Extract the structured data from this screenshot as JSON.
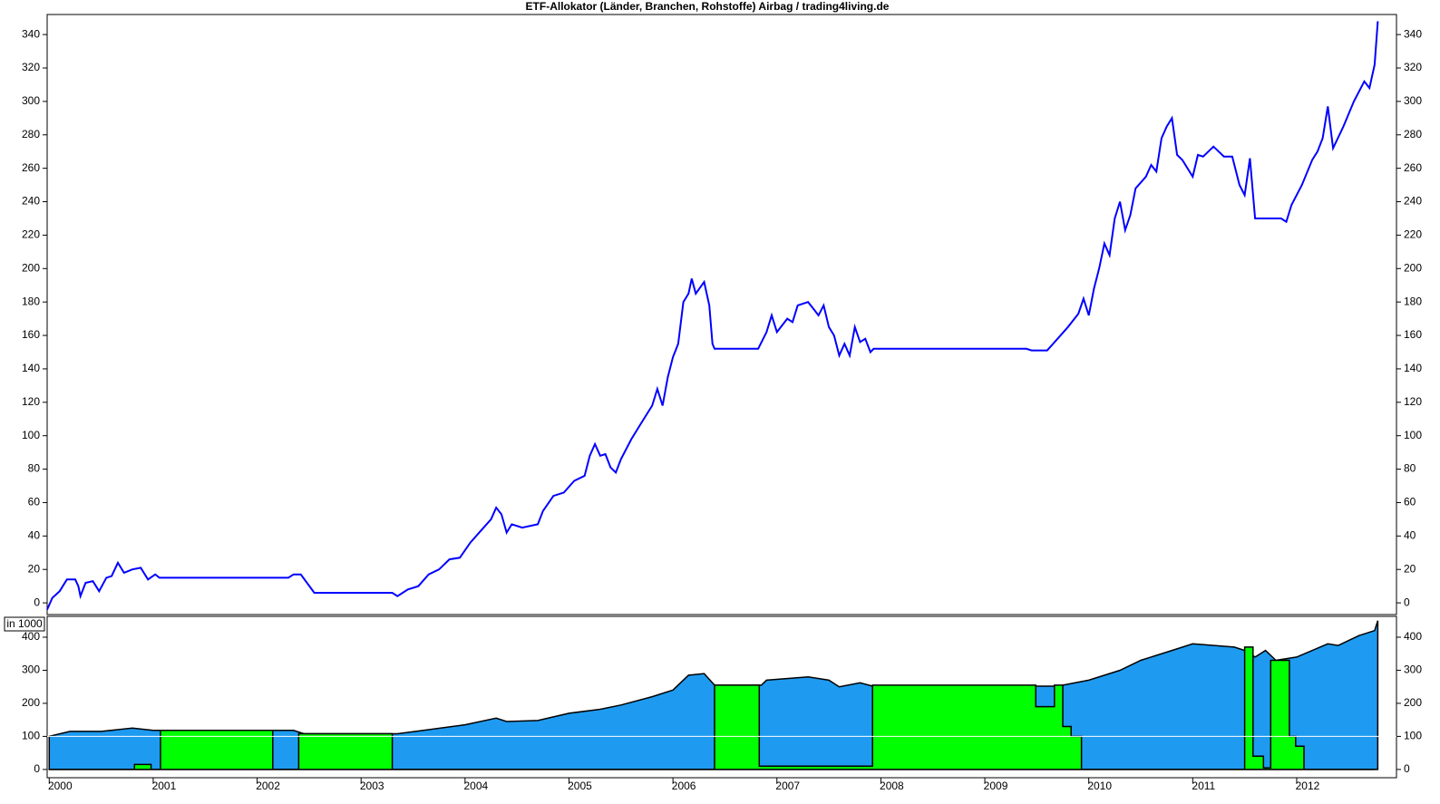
{
  "chart_data": [
    {
      "type": "line",
      "title": "ETF-Allokator (Länder, Branchen, Rohstoffe) Airbag / trading4living.de",
      "x": [
        1999.98,
        2000.03,
        2000.1,
        2000.17,
        2000.25,
        2000.28,
        2000.3,
        2000.35,
        2000.42,
        2000.48,
        2000.55,
        2000.6,
        2000.66,
        2000.72,
        2000.8,
        2000.88,
        2000.95,
        2001.02,
        2001.06,
        2002.3,
        2002.35,
        2002.42,
        2002.55,
        2003.3,
        2003.35,
        2003.45,
        2003.55,
        2003.65,
        2003.75,
        2003.85,
        2003.95,
        2004.05,
        2004.15,
        2004.25,
        2004.3,
        2004.35,
        2004.4,
        2004.45,
        2004.55,
        2004.7,
        2004.75,
        2004.85,
        2004.95,
        2005.05,
        2005.15,
        2005.2,
        2005.25,
        2005.3,
        2005.35,
        2005.4,
        2005.45,
        2005.5,
        2005.6,
        2005.7,
        2005.8,
        2005.85,
        2005.9,
        2005.95,
        2006.0,
        2006.05,
        2006.1,
        2006.15,
        2006.18,
        2006.22,
        2006.3,
        2006.35,
        2006.38,
        2006.4,
        2006.82,
        2006.9,
        2006.95,
        2007.0,
        2007.1,
        2007.15,
        2007.2,
        2007.3,
        2007.35,
        2007.4,
        2007.45,
        2007.5,
        2007.55,
        2007.6,
        2007.65,
        2007.7,
        2007.75,
        2007.8,
        2007.85,
        2007.9,
        2007.93,
        2009.4,
        2009.45,
        2009.6,
        2009.7,
        2009.8,
        2009.9,
        2009.95,
        2010.0,
        2010.05,
        2010.1,
        2010.15,
        2010.2,
        2010.25,
        2010.3,
        2010.35,
        2010.4,
        2010.45,
        2010.55,
        2010.6,
        2010.65,
        2010.7,
        2010.75,
        2010.8,
        2010.85,
        2010.9,
        2011.0,
        2011.05,
        2011.1,
        2011.2,
        2011.3,
        2011.38,
        2011.45,
        2011.5,
        2011.55,
        2011.6,
        2011.85,
        2011.9,
        2011.95,
        2012.05,
        2012.15,
        2012.2,
        2012.25,
        2012.3,
        2012.35,
        2012.45,
        2012.55,
        2012.65,
        2012.7,
        2012.75,
        2012.78
      ],
      "series": [
        {
          "color": "#0000ff",
          "values": [
            -4,
            3,
            7,
            14,
            14,
            10,
            4,
            12,
            13,
            7,
            15,
            16,
            24,
            18,
            20,
            21,
            14,
            17,
            15,
            15,
            17,
            17,
            6,
            6,
            4,
            8,
            10,
            17,
            20,
            26,
            27,
            36,
            43,
            50,
            57,
            53,
            42,
            47,
            45,
            47,
            55,
            64,
            66,
            73,
            76,
            88,
            95,
            88,
            89,
            81,
            78,
            86,
            98,
            108,
            118,
            128,
            118,
            135,
            147,
            155,
            180,
            185,
            194,
            185,
            192,
            178,
            155,
            152,
            152,
            162,
            172,
            162,
            170,
            168,
            178,
            180,
            176,
            172,
            178,
            165,
            160,
            148,
            155,
            148,
            165,
            156,
            158,
            150,
            152,
            152,
            151,
            151,
            158,
            165,
            173,
            182,
            172,
            188,
            200,
            215,
            208,
            230,
            240,
            223,
            232,
            248,
            255,
            262,
            258,
            278,
            285,
            290,
            268,
            265,
            255,
            268,
            267,
            273,
            267,
            267,
            250,
            244,
            266,
            230,
            230,
            228,
            238,
            250,
            265,
            270,
            278,
            297,
            272,
            285,
            300,
            312,
            308,
            322,
            348
          ]
        }
      ],
      "xlim": [
        1999.98,
        2012.96
      ],
      "ylim": [
        -7,
        352
      ],
      "yticks": [
        0,
        20,
        40,
        60,
        80,
        100,
        120,
        140,
        160,
        180,
        200,
        220,
        240,
        260,
        280,
        300,
        320,
        340
      ]
    },
    {
      "type": "area",
      "annotation": "in 1000",
      "series": [
        {
          "color": "#1e9bf0",
          "x": [
            2000.0,
            2000.2,
            2000.5,
            2000.8,
            2001.0,
            2002.35,
            2002.45,
            2003.35,
            2003.6,
            2004.0,
            2004.3,
            2004.4,
            2004.7,
            2005.0,
            2005.3,
            2005.5,
            2005.8,
            2006.0,
            2006.15,
            2006.3,
            2006.4,
            2006.85,
            2006.9,
            2007.3,
            2007.5,
            2007.6,
            2007.8,
            2007.92,
            2009.7,
            2010.0,
            2010.3,
            2010.5,
            2010.8,
            2011.0,
            2011.4,
            2011.5,
            2011.6,
            2011.7,
            2011.8,
            2012.0,
            2012.3,
            2012.4,
            2012.6,
            2012.75,
            2012.78
          ],
          "values": [
            100,
            115,
            115,
            125,
            118,
            118,
            108,
            108,
            118,
            135,
            155,
            145,
            148,
            170,
            182,
            195,
            220,
            240,
            285,
            290,
            255,
            255,
            270,
            280,
            270,
            250,
            262,
            252,
            252,
            270,
            300,
            330,
            360,
            380,
            370,
            360,
            340,
            360,
            330,
            340,
            380,
            375,
            405,
            420,
            450
          ]
        },
        {
          "color": "#00ff00",
          "x": [
            2000.0,
            2000.82,
            2000.82,
            2000.98,
            2000.98,
            2001.07,
            2001.07,
            2002.15,
            2002.15,
            2002.4,
            2002.4,
            2003.3,
            2003.3,
            2006.4,
            2006.4,
            2006.83,
            2006.83,
            2007.92,
            2007.92,
            2009.49,
            2009.49,
            2009.67,
            2009.67,
            2009.75,
            2009.75,
            2009.83,
            2009.83,
            2009.93,
            2009.93,
            2011.5,
            2011.5,
            2011.58,
            2011.58,
            2011.68,
            2011.68,
            2011.75,
            2011.75,
            2011.93,
            2011.93,
            2011.99,
            2011.99,
            2012.07,
            2012.07,
            2012.75
          ],
          "values": [
            0,
            0,
            15,
            15,
            0,
            0,
            118,
            118,
            0,
            0,
            108,
            108,
            0,
            0,
            255,
            255,
            10,
            10,
            255,
            255,
            190,
            190,
            255,
            255,
            130,
            130,
            100,
            100,
            0,
            0,
            370,
            370,
            40,
            40,
            5,
            5,
            330,
            330,
            100,
            100,
            70,
            70,
            0,
            0
          ]
        }
      ],
      "xlim": [
        1999.98,
        2012.96
      ],
      "ylim": [
        -25,
        463
      ],
      "yticks": [
        0,
        100,
        200,
        300,
        400
      ],
      "hline": 100,
      "xticks": [
        2000,
        2001,
        2002,
        2003,
        2004,
        2005,
        2006,
        2007,
        2008,
        2009,
        2010,
        2011,
        2012
      ]
    }
  ]
}
